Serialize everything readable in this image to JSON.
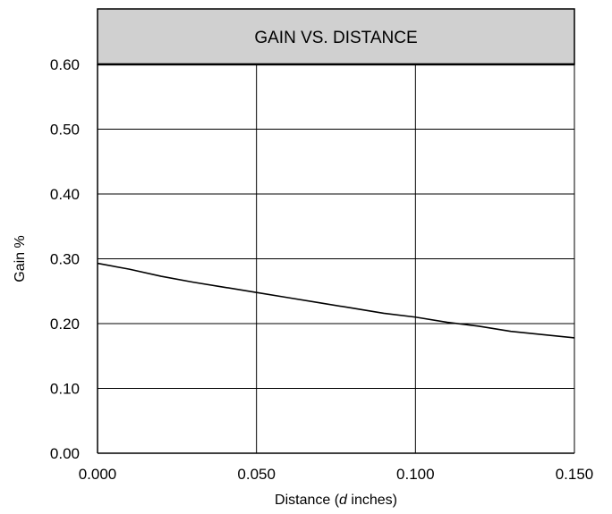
{
  "chart_data": {
    "type": "line",
    "title": "GAIN VS. DISTANCE",
    "xlabel": "Distance (d inches)",
    "xlabel_parts": {
      "before": "Distance (",
      "italic": "d",
      "after": " inches)"
    },
    "ylabel": "Gain %",
    "xlim": [
      0,
      0.15
    ],
    "ylim": [
      0,
      0.6
    ],
    "x_ticks": [
      0,
      0.05,
      0.1,
      0.15
    ],
    "x_tick_labels": [
      "0.000",
      "0.050",
      "0.100",
      "0.150"
    ],
    "y_ticks": [
      0,
      0.1,
      0.2,
      0.3,
      0.4,
      0.5,
      0.6
    ],
    "y_tick_labels": [
      "0.00",
      "0.10",
      "0.20",
      "0.30",
      "0.40",
      "0.50",
      "0.60"
    ],
    "grid": true,
    "series": [
      {
        "x": [
          0,
          0.01,
          0.02,
          0.03,
          0.04,
          0.05,
          0.06,
          0.07,
          0.08,
          0.09,
          0.1,
          0.11,
          0.12,
          0.13,
          0.14,
          0.15
        ],
        "y": [
          0.293,
          0.284,
          0.273,
          0.264,
          0.256,
          0.248,
          0.24,
          0.232,
          0.224,
          0.216,
          0.21,
          0.202,
          0.196,
          0.188,
          0.183,
          0.178
        ]
      }
    ],
    "colors": {
      "line": "#000000",
      "grid": "#000000",
      "title_bg": "#d0d0d0"
    }
  }
}
